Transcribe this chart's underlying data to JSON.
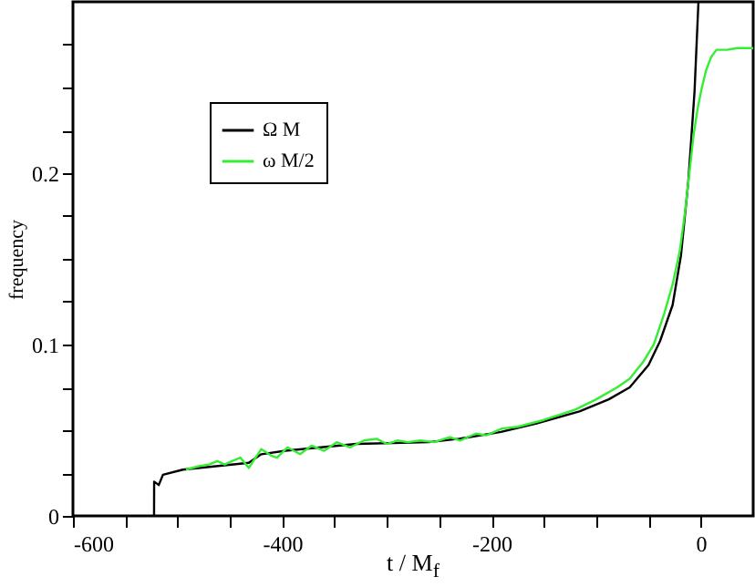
{
  "chart_data": {
    "type": "line",
    "xlabel": "t / M$_{f}$",
    "ylabel": "frequency",
    "xlim": [
      -600,
      50
    ],
    "ylim": [
      0,
      0.3
    ],
    "xticks": [
      -600,
      {
        "value": -550,
        "label": null
      },
      {
        "value": -500,
        "label": null
      },
      {
        "value": -450,
        "label": null
      },
      -400,
      {
        "value": -350,
        "label": null
      },
      {
        "value": -300,
        "label": null
      },
      {
        "value": -250,
        "label": null
      },
      -200,
      {
        "value": -150,
        "label": null
      },
      {
        "value": -100,
        "label": null
      },
      {
        "value": -50,
        "label": null
      },
      0
    ],
    "yticks": [
      0,
      {
        "value": 0.025,
        "label": null
      },
      {
        "value": 0.05,
        "label": null
      },
      {
        "value": 0.075,
        "label": null
      },
      0.1,
      {
        "value": 0.125,
        "label": null
      },
      {
        "value": 0.15,
        "label": null
      },
      {
        "value": 0.175,
        "label": null
      },
      0.2,
      {
        "value": 0.225,
        "label": null
      },
      {
        "value": 0.25,
        "label": null
      },
      {
        "value": 0.275,
        "label": null
      }
    ],
    "grid": false,
    "legend": "top left",
    "marker": "none",
    "line_style": "solid",
    "series": [
      {
        "name": "Ω M",
        "color": "#000000",
        "x": [
          -522.5,
          -522.4,
          -518,
          -514,
          -495,
          -432,
          -420,
          -397,
          -363,
          -329,
          -260,
          -231,
          -191,
          -157,
          -116,
          -88,
          -68,
          -50,
          -39,
          -27,
          -19,
          -12,
          -6,
          -2.3
        ],
        "values": [
          0,
          0.02,
          0.018,
          0.024,
          0.027,
          0.031,
          0.036,
          0.038,
          0.04,
          0.042,
          0.043,
          0.045,
          0.049,
          0.054,
          0.061,
          0.068,
          0.075,
          0.088,
          0.102,
          0.123,
          0.152,
          0.195,
          0.248,
          0.3
        ]
      },
      {
        "name": "ω M/2",
        "color": "#33ee33",
        "x": [
          -492,
          -480,
          -470,
          -462,
          -455,
          -448,
          -440,
          -432,
          -420,
          -410,
          -405,
          -395,
          -383,
          -372,
          -360,
          -348,
          -335,
          -322,
          -310,
          -300,
          -290,
          -280,
          -268,
          -255,
          -240,
          -230,
          -215,
          -205,
          -190,
          -175,
          -150,
          -120,
          -100,
          -80,
          -68,
          -55,
          -45,
          -35,
          -27,
          -20,
          -15,
          -11,
          -7,
          -3,
          1,
          5,
          10,
          15,
          25,
          35,
          50
        ],
        "values": [
          0.027,
          0.029,
          0.03,
          0.032,
          0.03,
          0.032,
          0.034,
          0.028,
          0.039,
          0.035,
          0.034,
          0.04,
          0.036,
          0.041,
          0.038,
          0.043,
          0.04,
          0.044,
          0.045,
          0.042,
          0.044,
          0.043,
          0.044,
          0.043,
          0.046,
          0.044,
          0.048,
          0.047,
          0.051,
          0.052,
          0.056,
          0.062,
          0.068,
          0.075,
          0.08,
          0.09,
          0.1,
          0.118,
          0.135,
          0.155,
          0.178,
          0.2,
          0.222,
          0.238,
          0.25,
          0.26,
          0.268,
          0.272,
          0.272,
          0.273,
          0.273
        ]
      }
    ]
  }
}
